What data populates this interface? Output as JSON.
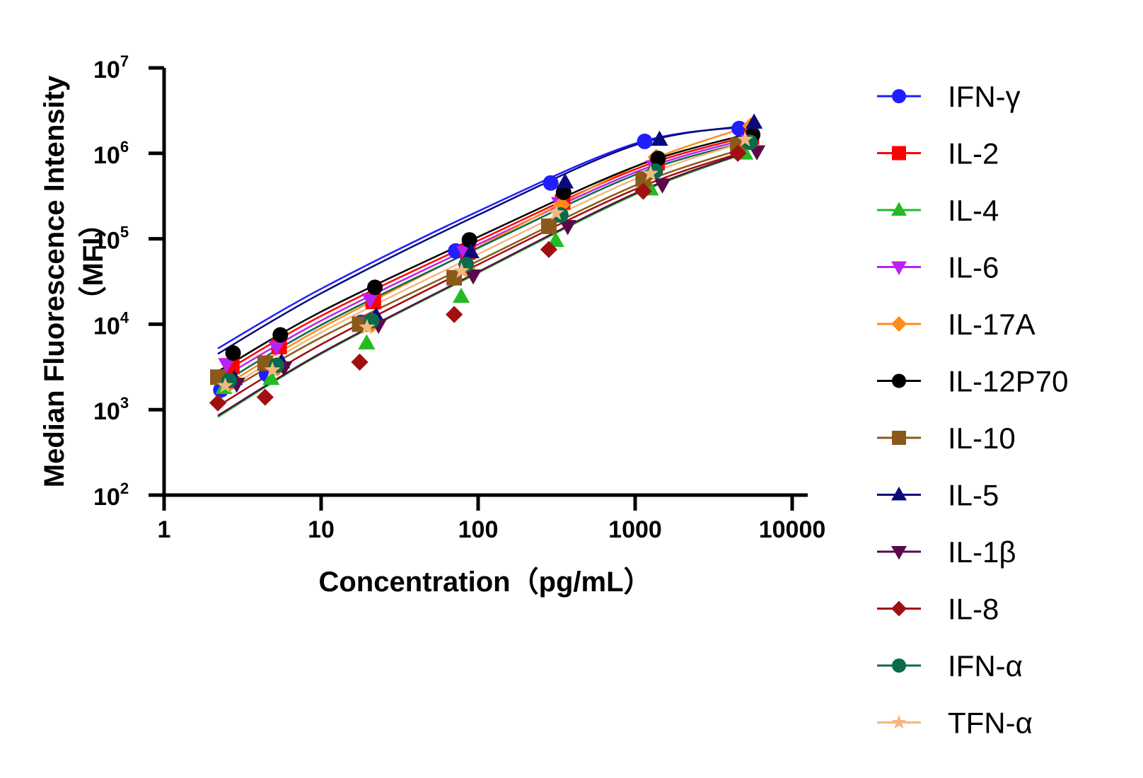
{
  "chart_data": {
    "type": "scatter",
    "subtype": "log-log scatter with fitted curves",
    "xlabel": "Concentration（pg/mL）",
    "ylabel": "Median Fluorescence Intensity",
    "ylabel_line2": "（MFI）",
    "x_scale": "log",
    "y_scale": "log",
    "xlim": [
      1,
      10000
    ],
    "ylim": [
      100,
      10000000
    ],
    "x_ticks": [
      "1",
      "10",
      "100",
      "1000",
      "10000"
    ],
    "y_ticks": [
      {
        "base": "10",
        "exp": "2",
        "value": 100
      },
      {
        "base": "10",
        "exp": "3",
        "value": 1000
      },
      {
        "base": "10",
        "exp": "4",
        "value": 10000
      },
      {
        "base": "10",
        "exp": "5",
        "value": 100000
      },
      {
        "base": "10",
        "exp": "6",
        "value": 1000000
      },
      {
        "base": "10",
        "exp": "7",
        "value": 10000000
      }
    ],
    "legend_position": "right",
    "series": [
      {
        "name": "IFN-γ",
        "color": "#1f1fff",
        "marker": "circle",
        "x": [
          2.3,
          4.5,
          18,
          72,
          290,
          1150,
          4600
        ],
        "y": [
          1700,
          2600,
          10500,
          72000,
          450000,
          1380000,
          1950000
        ],
        "fit": {
          "x": [
            2.2,
            10,
            100,
            1000,
            5000
          ],
          "y": [
            5200,
            26000,
            210000,
            1300000,
            2050000
          ]
        }
      },
      {
        "name": "IL-2",
        "color": "#ff0000",
        "marker": "square",
        "x": [
          2.7,
          5.4,
          21.5,
          86,
          345,
          1380,
          5500
        ],
        "y": [
          3200,
          5500,
          18500,
          70000,
          270000,
          780000,
          1550000
        ],
        "fit": {
          "x": [
            2.2,
            10,
            100,
            1000,
            5000
          ],
          "y": [
            2500,
            12500,
            95000,
            650000,
            1550000
          ]
        }
      },
      {
        "name": "IL-4",
        "color": "#22bb22",
        "marker": "triangle-up",
        "x": [
          2.4,
          4.8,
          19.5,
          78,
          312,
          1250,
          5000
        ],
        "y": [
          1800,
          2300,
          6000,
          21000,
          95000,
          380000,
          1000000
        ],
        "fit": {
          "x": [
            2.2,
            10,
            100,
            1000,
            5000
          ],
          "y": [
            820,
            4500,
            40000,
            330000,
            1000000
          ]
        }
      },
      {
        "name": "IL-6",
        "color": "#bb22ee",
        "marker": "triangle-down",
        "x": [
          2.5,
          5.2,
          20.5,
          82,
          330,
          1320,
          5300
        ],
        "y": [
          3400,
          5400,
          19500,
          70000,
          260000,
          700000,
          1400000
        ],
        "fit": {
          "x": [
            2.2,
            10,
            100,
            1000,
            5000
          ],
          "y": [
            2200,
            11000,
            86000,
            600000,
            1450000
          ]
        }
      },
      {
        "name": "IL-17A",
        "color": "#ff8c1a",
        "marker": "diamond",
        "x": [
          2.65,
          5.3,
          21.2,
          85,
          340,
          1360,
          5450
        ],
        "y": [
          2100,
          3100,
          10000,
          45000,
          250000,
          900000,
          2100000
        ],
        "fit": {
          "x": [
            2.2,
            10,
            100,
            1000,
            5000
          ],
          "y": [
            1700,
            9000,
            80000,
            700000,
            2000000
          ]
        }
      },
      {
        "name": "IL-12P70",
        "color": "#000000",
        "marker": "circle",
        "x": [
          2.75,
          5.5,
          22,
          88,
          350,
          1400,
          5600
        ],
        "y": [
          4600,
          7500,
          27000,
          97000,
          350000,
          870000,
          1650000
        ],
        "fit": {
          "x": [
            2.2,
            10,
            100,
            1000,
            5000
          ],
          "y": [
            2800,
            14000,
            105000,
            700000,
            1650000
          ]
        }
      },
      {
        "name": "IL-10",
        "color": "#8b5a1a",
        "marker": "square",
        "x": [
          2.2,
          4.4,
          17.6,
          70.4,
          282,
          1126,
          4505
        ],
        "y": [
          2400,
          3500,
          10000,
          35000,
          140000,
          500000,
          1250000
        ],
        "fit": {
          "x": [
            2.2,
            10,
            100,
            1000,
            5000
          ],
          "y": [
            1400,
            7000,
            55000,
            420000,
            1150000
          ]
        }
      },
      {
        "name": "IL-5",
        "color": "#0a0a7a",
        "marker": "triangle-up",
        "x": [
          2.8,
          5.6,
          22.4,
          90,
          358,
          1430,
          5720
        ],
        "y": [
          2300,
          3600,
          12500,
          70000,
          460000,
          1450000,
          2300000
        ],
        "fit": {
          "x": [
            2.2,
            10,
            100,
            1000,
            5000
          ],
          "y": [
            4500,
            23000,
            190000,
            1250000,
            2100000
          ]
        }
      },
      {
        "name": "IL-1β",
        "color": "#5a0a4a",
        "marker": "triangle-down",
        "x": [
          2.9,
          5.8,
          23.2,
          93,
          372,
          1490,
          5960
        ],
        "y": [
          2000,
          3100,
          9800,
          37000,
          140000,
          430000,
          1050000
        ],
        "fit": {
          "x": [
            2.2,
            10,
            100,
            1000,
            5000
          ],
          "y": [
            850,
            4600,
            41000,
            340000,
            1020000
          ]
        }
      },
      {
        "name": "IL-8",
        "color": "#a01010",
        "marker": "diamond",
        "x": [
          2.2,
          4.4,
          17.6,
          70.4,
          282,
          1126,
          4505
        ],
        "y": [
          1200,
          1400,
          3600,
          13000,
          75000,
          360000,
          1000000
        ],
        "fit": {
          "x": [
            2.2,
            10,
            100,
            1000,
            5000
          ],
          "y": [
            1100,
            5800,
            50000,
            380000,
            1050000
          ]
        }
      },
      {
        "name": "IFN-α",
        "color": "#0a6a4a",
        "marker": "circle",
        "x": [
          2.6,
          5.2,
          21,
          84,
          336,
          1344,
          5376
        ],
        "y": [
          2200,
          3300,
          11000,
          50000,
          190000,
          620000,
          1350000
        ],
        "fit": {
          "x": [
            2.2,
            10,
            100,
            1000,
            5000
          ],
          "y": [
            1900,
            9800,
            78000,
            560000,
            1350000
          ]
        }
      },
      {
        "name": "TFN-α",
        "color": "#f2b880",
        "marker": "star",
        "x": [
          2.45,
          4.9,
          19.6,
          78.4,
          314,
          1254,
          5018
        ],
        "y": [
          1900,
          2900,
          9200,
          42000,
          200000,
          580000,
          1450000
        ],
        "fit": {
          "x": [
            2.2,
            10,
            100,
            1000,
            5000
          ],
          "y": [
            1500,
            8000,
            66000,
            500000,
            1350000
          ]
        }
      }
    ]
  }
}
